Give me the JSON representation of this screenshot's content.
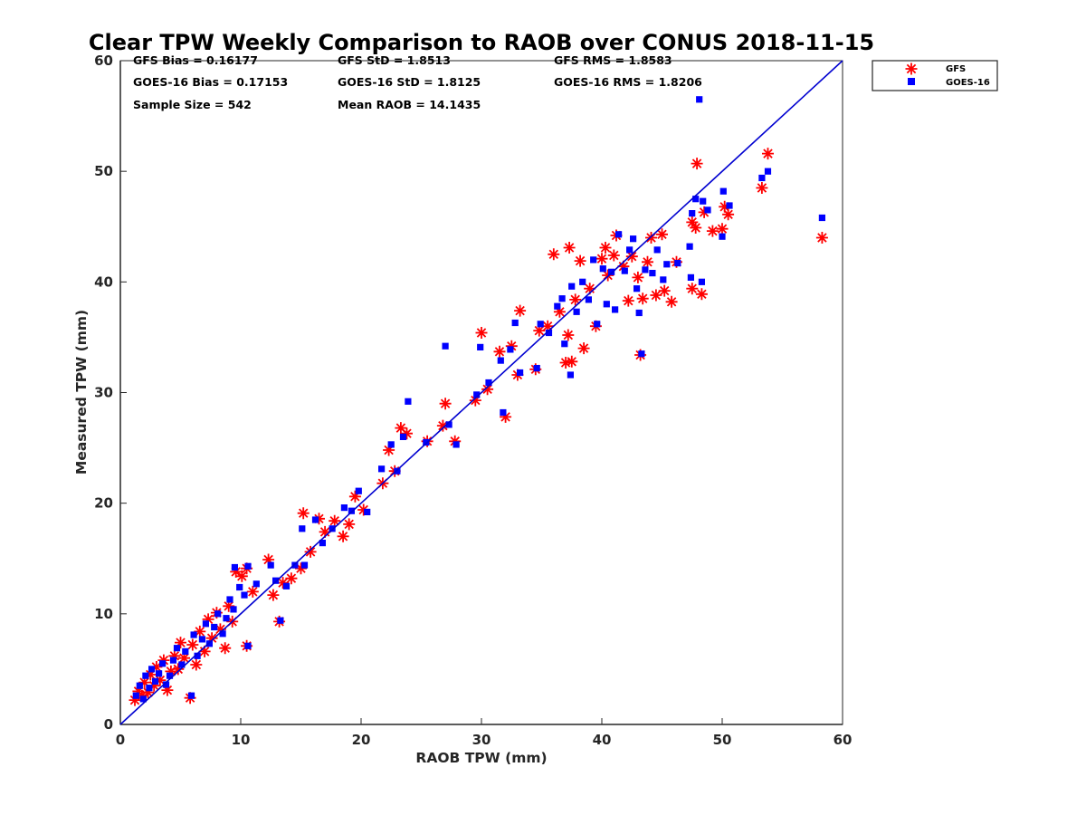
{
  "chart_data": {
    "type": "scatter",
    "title": "Clear TPW Weekly Comparison to RAOB over CONUS 2018-11-15",
    "xlabel": "RAOB TPW (mm)",
    "ylabel": "Measured TPW (mm)",
    "xlim": [
      0,
      60
    ],
    "ylim": [
      0,
      60
    ],
    "xticks": [
      "0",
      "10",
      "20",
      "30",
      "40",
      "50",
      "60"
    ],
    "yticks": [
      "0",
      "10",
      "20",
      "30",
      "40",
      "50",
      "60"
    ],
    "grid": false,
    "legend_position": "outside top-right",
    "identity_line": {
      "from": [
        0,
        0
      ],
      "to": [
        60,
        60
      ],
      "color": "#0000d0"
    },
    "stats": {
      "gfs_bias": "GFS Bias = 0.16177",
      "goes_bias": "GOES-16 Bias = 0.17153",
      "sample_size": "Sample Size = 542",
      "gfs_std": "GFS StD = 1.8513",
      "goes_std": "GOES-16 StD = 1.8125",
      "mean_raob": "Mean RAOB = 14.1435",
      "gfs_rms": "GFS RMS = 1.8583",
      "goes_rms": "GOES-16 RMS = 1.8206"
    },
    "series": [
      {
        "name": "GFS",
        "marker": "asterisk",
        "color": "#ff0000",
        "points": [
          [
            1.2,
            2.2
          ],
          [
            1.5,
            3.0
          ],
          [
            1.8,
            2.6
          ],
          [
            2.0,
            3.8
          ],
          [
            2.3,
            2.9
          ],
          [
            2.5,
            4.5
          ],
          [
            2.8,
            3.5
          ],
          [
            3.0,
            5.2
          ],
          [
            3.3,
            4.0
          ],
          [
            3.6,
            5.8
          ],
          [
            3.9,
            3.1
          ],
          [
            4.2,
            4.8
          ],
          [
            4.5,
            6.2
          ],
          [
            4.8,
            5.0
          ],
          [
            5.0,
            7.4
          ],
          [
            5.3,
            6.0
          ],
          [
            5.8,
            2.4
          ],
          [
            6.0,
            7.2
          ],
          [
            6.3,
            5.4
          ],
          [
            6.6,
            8.4
          ],
          [
            7.0,
            6.6
          ],
          [
            7.3,
            9.5
          ],
          [
            7.6,
            7.8
          ],
          [
            8.0,
            10.1
          ],
          [
            8.3,
            8.6
          ],
          [
            8.7,
            6.9
          ],
          [
            9.0,
            10.7
          ],
          [
            9.3,
            9.3
          ],
          [
            9.6,
            13.8
          ],
          [
            10.1,
            13.4
          ],
          [
            10.5,
            7.1
          ],
          [
            10.5,
            14.1
          ],
          [
            11.0,
            12.0
          ],
          [
            12.3,
            14.9
          ],
          [
            12.7,
            11.7
          ],
          [
            13.2,
            9.3
          ],
          [
            13.5,
            12.8
          ],
          [
            14.2,
            13.2
          ],
          [
            15.0,
            14.1
          ],
          [
            15.2,
            19.1
          ],
          [
            15.8,
            15.6
          ],
          [
            16.5,
            18.6
          ],
          [
            17.0,
            17.4
          ],
          [
            17.8,
            18.4
          ],
          [
            18.5,
            17.0
          ],
          [
            19.0,
            18.1
          ],
          [
            19.5,
            20.6
          ],
          [
            20.2,
            19.4
          ],
          [
            21.8,
            21.8
          ],
          [
            22.3,
            24.8
          ],
          [
            22.8,
            22.9
          ],
          [
            23.3,
            26.8
          ],
          [
            23.8,
            26.3
          ],
          [
            25.5,
            25.6
          ],
          [
            26.8,
            27.0
          ],
          [
            27.0,
            29.0
          ],
          [
            27.8,
            25.6
          ],
          [
            29.5,
            29.3
          ],
          [
            30.0,
            35.4
          ],
          [
            30.5,
            30.3
          ],
          [
            31.5,
            33.7
          ],
          [
            32.0,
            27.8
          ],
          [
            32.5,
            34.2
          ],
          [
            33.0,
            31.6
          ],
          [
            33.2,
            37.4
          ],
          [
            34.5,
            32.1
          ],
          [
            34.8,
            35.6
          ],
          [
            35.5,
            36.0
          ],
          [
            36.0,
            42.5
          ],
          [
            36.5,
            37.3
          ],
          [
            37.0,
            32.7
          ],
          [
            37.2,
            35.2
          ],
          [
            37.3,
            43.1
          ],
          [
            37.5,
            32.8
          ],
          [
            37.8,
            38.4
          ],
          [
            38.2,
            41.9
          ],
          [
            38.5,
            34.0
          ],
          [
            39.0,
            39.4
          ],
          [
            39.5,
            36.0
          ],
          [
            40.0,
            42.1
          ],
          [
            40.3,
            43.1
          ],
          [
            40.5,
            40.6
          ],
          [
            41.0,
            42.4
          ],
          [
            41.2,
            44.2
          ],
          [
            41.8,
            41.4
          ],
          [
            42.2,
            38.3
          ],
          [
            42.5,
            42.3
          ],
          [
            43.0,
            40.4
          ],
          [
            43.2,
            33.4
          ],
          [
            43.4,
            38.5
          ],
          [
            43.8,
            41.8
          ],
          [
            44.1,
            44.0
          ],
          [
            44.5,
            38.8
          ],
          [
            45.0,
            44.3
          ],
          [
            45.2,
            39.2
          ],
          [
            45.8,
            38.2
          ],
          [
            46.2,
            41.8
          ],
          [
            47.5,
            39.4
          ],
          [
            47.5,
            45.4
          ],
          [
            47.8,
            44.9
          ],
          [
            47.9,
            50.7
          ],
          [
            48.3,
            38.9
          ],
          [
            48.5,
            46.3
          ],
          [
            49.2,
            44.6
          ],
          [
            50.0,
            44.8
          ],
          [
            50.2,
            46.8
          ],
          [
            50.5,
            46.1
          ],
          [
            53.3,
            48.5
          ],
          [
            53.8,
            51.6
          ],
          [
            58.3,
            44.0
          ]
        ]
      },
      {
        "name": "GOES-16",
        "marker": "square",
        "color": "#0000ff",
        "points": [
          [
            1.3,
            2.6
          ],
          [
            1.6,
            3.5
          ],
          [
            1.9,
            2.3
          ],
          [
            2.1,
            4.4
          ],
          [
            2.4,
            3.3
          ],
          [
            2.6,
            5.0
          ],
          [
            2.9,
            3.9
          ],
          [
            3.2,
            4.6
          ],
          [
            3.5,
            5.5
          ],
          [
            3.8,
            3.6
          ],
          [
            4.1,
            4.4
          ],
          [
            4.4,
            5.8
          ],
          [
            4.7,
            6.9
          ],
          [
            5.1,
            5.4
          ],
          [
            5.4,
            6.6
          ],
          [
            5.9,
            2.6
          ],
          [
            6.1,
            8.1
          ],
          [
            6.4,
            6.2
          ],
          [
            6.8,
            7.7
          ],
          [
            7.1,
            9.1
          ],
          [
            7.4,
            7.3
          ],
          [
            7.8,
            8.8
          ],
          [
            8.1,
            10.0
          ],
          [
            8.5,
            8.2
          ],
          [
            8.8,
            9.6
          ],
          [
            9.1,
            11.3
          ],
          [
            9.4,
            10.4
          ],
          [
            9.5,
            14.2
          ],
          [
            9.9,
            12.4
          ],
          [
            10.3,
            11.7
          ],
          [
            10.6,
            7.1
          ],
          [
            10.6,
            14.3
          ],
          [
            11.3,
            12.7
          ],
          [
            12.5,
            14.4
          ],
          [
            12.9,
            13.0
          ],
          [
            13.3,
            9.4
          ],
          [
            13.8,
            12.5
          ],
          [
            14.5,
            14.4
          ],
          [
            15.1,
            17.7
          ],
          [
            15.3,
            14.4
          ],
          [
            16.2,
            18.5
          ],
          [
            16.8,
            16.4
          ],
          [
            17.6,
            17.7
          ],
          [
            18.6,
            19.6
          ],
          [
            19.2,
            19.3
          ],
          [
            19.8,
            21.1
          ],
          [
            20.5,
            19.2
          ],
          [
            21.7,
            23.1
          ],
          [
            22.5,
            25.3
          ],
          [
            23.0,
            22.9
          ],
          [
            23.5,
            26.0
          ],
          [
            23.9,
            29.2
          ],
          [
            25.4,
            25.5
          ],
          [
            27.0,
            34.2
          ],
          [
            27.3,
            27.1
          ],
          [
            27.9,
            25.3
          ],
          [
            29.6,
            29.8
          ],
          [
            29.9,
            34.1
          ],
          [
            30.6,
            30.9
          ],
          [
            31.6,
            32.9
          ],
          [
            31.8,
            28.2
          ],
          [
            32.4,
            33.9
          ],
          [
            32.8,
            36.3
          ],
          [
            33.2,
            31.8
          ],
          [
            34.6,
            32.2
          ],
          [
            34.9,
            36.2
          ],
          [
            35.6,
            35.4
          ],
          [
            36.3,
            37.8
          ],
          [
            36.7,
            38.5
          ],
          [
            36.9,
            34.4
          ],
          [
            37.4,
            31.6
          ],
          [
            37.5,
            39.6
          ],
          [
            37.9,
            37.3
          ],
          [
            38.4,
            40.0
          ],
          [
            38.9,
            38.4
          ],
          [
            39.3,
            42.0
          ],
          [
            39.6,
            36.2
          ],
          [
            40.1,
            41.2
          ],
          [
            40.4,
            38.0
          ],
          [
            40.8,
            40.9
          ],
          [
            41.1,
            37.5
          ],
          [
            41.4,
            44.3
          ],
          [
            41.9,
            41.0
          ],
          [
            42.3,
            42.9
          ],
          [
            42.6,
            43.9
          ],
          [
            42.9,
            39.4
          ],
          [
            43.1,
            37.2
          ],
          [
            43.3,
            33.5
          ],
          [
            43.6,
            41.1
          ],
          [
            44.2,
            40.8
          ],
          [
            44.6,
            42.9
          ],
          [
            45.1,
            40.2
          ],
          [
            45.4,
            41.6
          ],
          [
            46.3,
            41.7
          ],
          [
            47.3,
            43.2
          ],
          [
            47.4,
            40.4
          ],
          [
            47.5,
            46.2
          ],
          [
            47.8,
            47.5
          ],
          [
            48.1,
            56.5
          ],
          [
            48.3,
            40.0
          ],
          [
            48.4,
            47.3
          ],
          [
            48.8,
            46.5
          ],
          [
            50.0,
            44.1
          ],
          [
            50.1,
            48.2
          ],
          [
            50.6,
            46.9
          ],
          [
            53.3,
            49.4
          ],
          [
            53.8,
            50.0
          ],
          [
            58.3,
            45.8
          ]
        ]
      }
    ]
  }
}
